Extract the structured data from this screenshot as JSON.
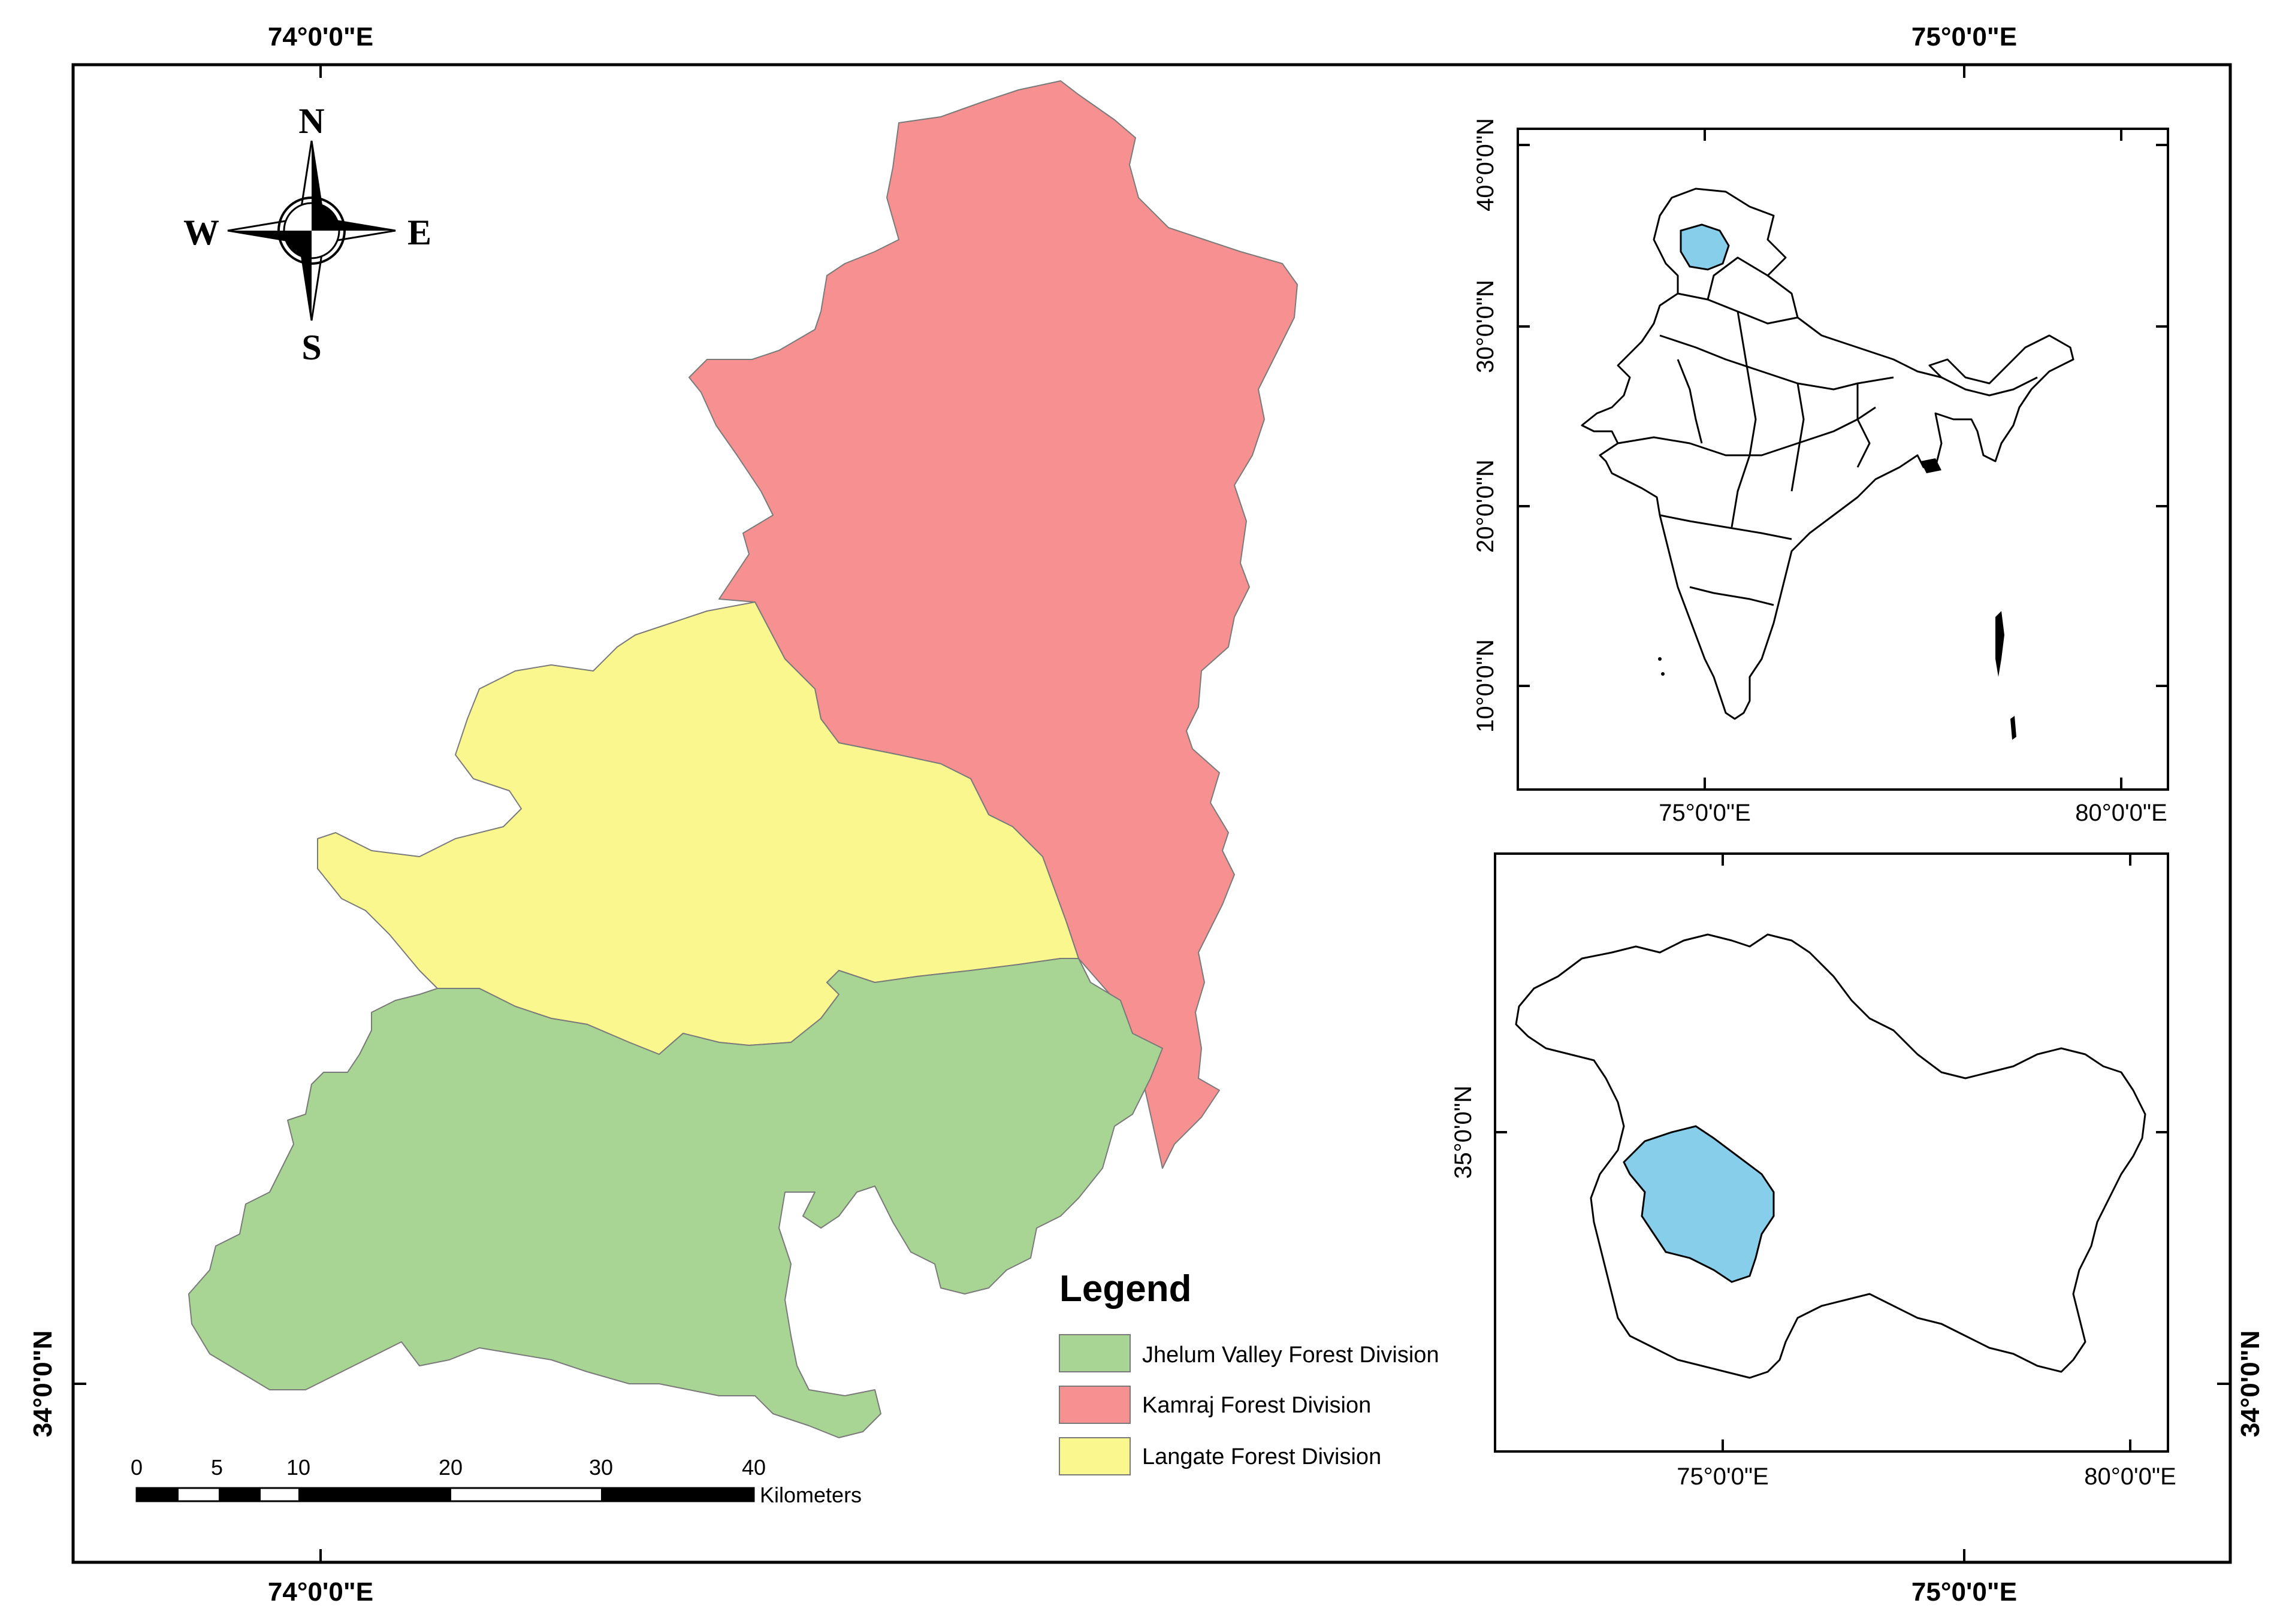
{
  "graticule": {
    "top_left": "74°0'0\"E",
    "top_right": "75°0'0\"E",
    "bottom_left": "74°0'0\"E",
    "bottom_right": "75°0'0\"E",
    "left_lat": "34°0'0\"N",
    "right_lat": "34°0'0\"N"
  },
  "compass": {
    "n": "N",
    "s": "S",
    "e": "E",
    "w": "W"
  },
  "legend": {
    "title": "Legend",
    "items": [
      {
        "label": "Jhelum Valley Forest Division",
        "color": "#a8d593"
      },
      {
        "label": "Kamraj Forest Division",
        "color": "#f79191"
      },
      {
        "label": "Langate Forest Division",
        "color": "#fbf78f"
      }
    ]
  },
  "scale_bar": {
    "ticks": [
      "0",
      "5",
      "10",
      "20",
      "30",
      "40"
    ],
    "unit": "Kilometers"
  },
  "inset_india": {
    "lat_labels": [
      "40°0'0\"N",
      "30°0'0\"N",
      "20°0'0\"N",
      "10°0'0\"N"
    ],
    "lon_labels": [
      "75°0'0\"E",
      "80°0'0\"E"
    ],
    "highlight_color": "#87ceeb"
  },
  "inset_jk": {
    "lat_labels": [
      "35°0'0\"N"
    ],
    "lon_labels": [
      "75°0'0\"E",
      "80°0'0\"E"
    ],
    "highlight_color": "#87ceeb"
  }
}
